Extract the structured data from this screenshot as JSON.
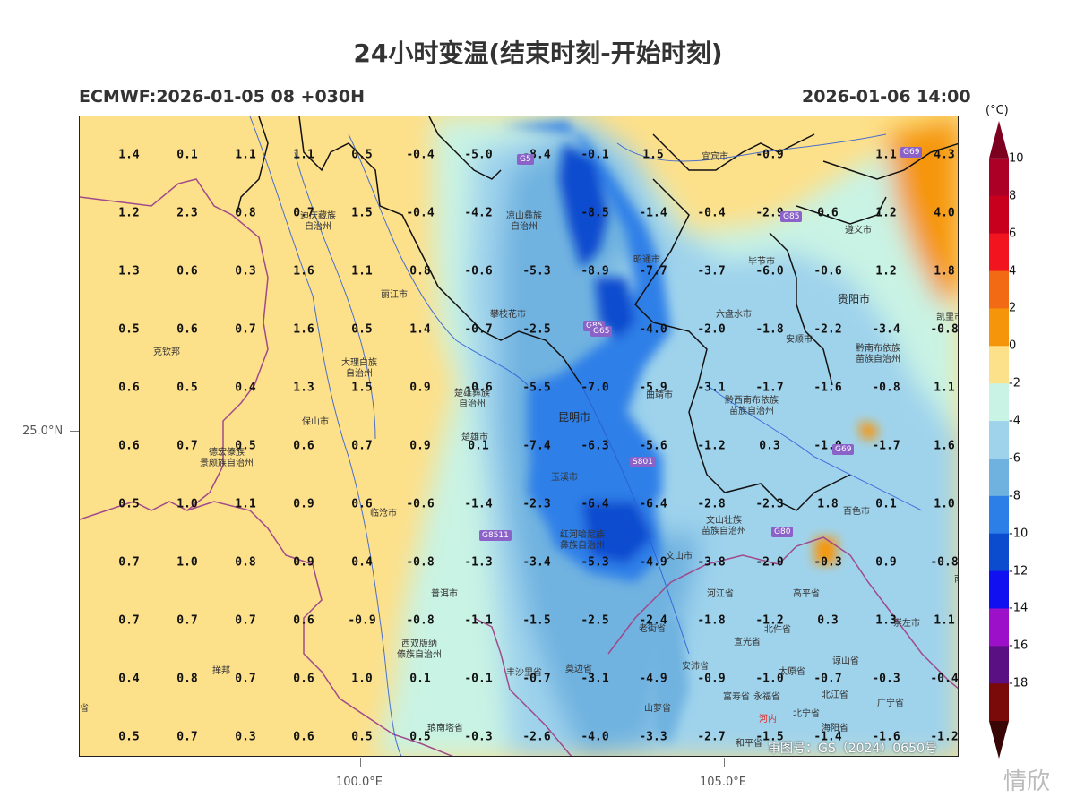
{
  "title": "24小时变温(结束时刻-开始时刻)",
  "subtitle_left": "ECMWF:2026-01-05 08 +030H",
  "subtitle_right": "2026-01-06 14:00",
  "legend": {
    "unit": "(°C)",
    "levels": [
      "10",
      "8",
      "6",
      "4",
      "2",
      "0",
      "-2",
      "-4",
      "-6",
      "-8",
      "-10",
      "-12",
      "-14",
      "-16",
      "-18"
    ],
    "colors": [
      "#ad0027",
      "#c8001e",
      "#f2141e",
      "#f26a14",
      "#f5960a",
      "#fde08a",
      "#c9f3e4",
      "#9fd3ec",
      "#6fb2e0",
      "#2d7fe8",
      "#0b4ccf",
      "#1010f0",
      "#9b10c8",
      "#5a0f82",
      "#7a0a0a"
    ]
  },
  "axes": {
    "lat_label": "25.0°N",
    "lon_labels": [
      "100.0°E",
      "105.0°E"
    ]
  },
  "values": [
    [
      "1.4",
      "0.1",
      "1.1",
      "1.1",
      "0.5",
      "-0.4",
      "-5.0",
      "-8.4",
      "-0.1",
      "1.5",
      "",
      "-0.9",
      "",
      "1.1",
      "4.3"
    ],
    [
      "1.2",
      "2.3",
      "0.8",
      "0.7",
      "1.5",
      "-0.4",
      "-4.2",
      "",
      "-8.5",
      "-1.4",
      "-0.4",
      "-2.9",
      "0.6",
      "1.2",
      "4.0"
    ],
    [
      "1.3",
      "0.6",
      "0.3",
      "1.6",
      "1.1",
      "0.8",
      "-0.6",
      "-5.3",
      "-8.9",
      "-7.7",
      "-3.7",
      "-6.0",
      "-0.6",
      "1.2",
      "1.8"
    ],
    [
      "0.5",
      "0.6",
      "0.7",
      "1.6",
      "0.5",
      "1.4",
      "-0.7",
      "-2.5",
      "",
      "-4.0",
      "-2.0",
      "-1.8",
      "-2.2",
      "-3.4",
      "-0.8"
    ],
    [
      "0.6",
      "0.5",
      "0.4",
      "1.3",
      "1.5",
      "0.9",
      "-0.6",
      "-5.5",
      "-7.0",
      "-5.9",
      "-3.1",
      "-1.7",
      "-1.6",
      "-0.8",
      "1.1"
    ],
    [
      "0.6",
      "0.7",
      "0.5",
      "0.6",
      "0.7",
      "0.9",
      "0.1",
      "-7.4",
      "-6.3",
      "-5.6",
      "-1.2",
      "0.3",
      "-1.0",
      "-1.7",
      "1.6"
    ],
    [
      "0.5",
      "1.0",
      "1.1",
      "0.9",
      "0.6",
      "-0.6",
      "-1.4",
      "-2.3",
      "-6.4",
      "-6.4",
      "-2.8",
      "-2.3",
      "1.8",
      "0.1",
      "1.0"
    ],
    [
      "0.7",
      "1.0",
      "0.8",
      "0.9",
      "0.4",
      "-0.8",
      "-1.3",
      "-3.4",
      "-5.3",
      "-4.9",
      "-3.8",
      "-2.0",
      "-0.3",
      "0.9",
      "-0.8"
    ],
    [
      "0.7",
      "0.7",
      "0.7",
      "0.6",
      "-0.9",
      "-0.8",
      "-1.1",
      "-1.5",
      "-2.5",
      "-2.4",
      "-1.8",
      "-1.2",
      "0.3",
      "1.3",
      "1.1"
    ],
    [
      "0.4",
      "0.8",
      "0.7",
      "0.6",
      "1.0",
      "0.1",
      "-0.1",
      "-0.7",
      "-3.1",
      "-4.9",
      "-0.9",
      "-1.0",
      "-0.7",
      "-0.3",
      "-0.4"
    ],
    [
      "0.5",
      "0.7",
      "0.3",
      "0.6",
      "0.5",
      "0.5",
      "-0.3",
      "-2.6",
      "-4.0",
      "-3.3",
      "-2.7",
      "-1.5",
      "-1.4",
      "-1.6",
      "-1.2"
    ]
  ],
  "places": [
    {
      "name": "迪庆藏族\n自治州",
      "cls": ""
    },
    {
      "name": "凉山彝族\n自治州",
      "cls": ""
    },
    {
      "name": "丽江市",
      "cls": ""
    },
    {
      "name": "攀枝花市",
      "cls": ""
    },
    {
      "name": "昭通市",
      "cls": ""
    },
    {
      "name": "宜宾市",
      "cls": ""
    },
    {
      "name": "遵义市",
      "cls": ""
    },
    {
      "name": "毕节市",
      "cls": ""
    },
    {
      "name": "贵阳市",
      "cls": "big"
    },
    {
      "name": "六盘水市",
      "cls": ""
    },
    {
      "name": "安顺市",
      "cls": ""
    },
    {
      "name": "凯里市",
      "cls": ""
    },
    {
      "name": "黔南布依族\n苗族自治州",
      "cls": ""
    },
    {
      "name": "克钦邦",
      "cls": ""
    },
    {
      "name": "大理白族\n自治州",
      "cls": ""
    },
    {
      "name": "楚雄彝族\n自治州",
      "cls": ""
    },
    {
      "name": "曲靖市",
      "cls": ""
    },
    {
      "name": "黔西南布依族\n苗族自治州",
      "cls": ""
    },
    {
      "name": "保山市",
      "cls": ""
    },
    {
      "name": "昆明市",
      "cls": "big"
    },
    {
      "name": "楚雄市",
      "cls": ""
    },
    {
      "name": "德宏傣族\n景颇族自治州",
      "cls": ""
    },
    {
      "name": "玉溪市",
      "cls": ""
    },
    {
      "name": "临沧市",
      "cls": ""
    },
    {
      "name": "红河哈尼族\n彝族自治州",
      "cls": ""
    },
    {
      "name": "文山壮族\n苗族自治州",
      "cls": ""
    },
    {
      "name": "百色市",
      "cls": ""
    },
    {
      "name": "文山市",
      "cls": ""
    },
    {
      "name": "普洱市",
      "cls": ""
    },
    {
      "name": "河江省",
      "cls": ""
    },
    {
      "name": "高平省",
      "cls": ""
    },
    {
      "name": "崇左市",
      "cls": ""
    },
    {
      "name": "老街省",
      "cls": ""
    },
    {
      "name": "北件省",
      "cls": ""
    },
    {
      "name": "宣光省",
      "cls": ""
    },
    {
      "name": "西双版纳\n傣族自治州",
      "cls": ""
    },
    {
      "name": "掸邦",
      "cls": ""
    },
    {
      "name": "丰沙里省",
      "cls": ""
    },
    {
      "name": "奠边省",
      "cls": ""
    },
    {
      "name": "安沛省",
      "cls": ""
    },
    {
      "name": "太原省",
      "cls": ""
    },
    {
      "name": "谅山省",
      "cls": ""
    },
    {
      "name": "富寿省",
      "cls": ""
    },
    {
      "name": "永福省",
      "cls": ""
    },
    {
      "name": "北江省",
      "cls": ""
    },
    {
      "name": "山萝省",
      "cls": ""
    },
    {
      "name": "广宁省",
      "cls": ""
    },
    {
      "name": "河内",
      "cls": "red"
    },
    {
      "name": "北宁省",
      "cls": ""
    },
    {
      "name": "海阳省",
      "cls": ""
    },
    {
      "name": "琅南塔省",
      "cls": ""
    },
    {
      "name": "和平省",
      "cls": ""
    },
    {
      "name": "省",
      "cls": ""
    },
    {
      "name": "南",
      "cls": ""
    }
  ],
  "roads": [
    "G5",
    "G85",
    "G69",
    "G85",
    "G65",
    "G69",
    "S801",
    "G8511",
    "G80"
  ],
  "map_stamp": "审图号：GS（2024）0650号",
  "watermark": "情欣"
}
